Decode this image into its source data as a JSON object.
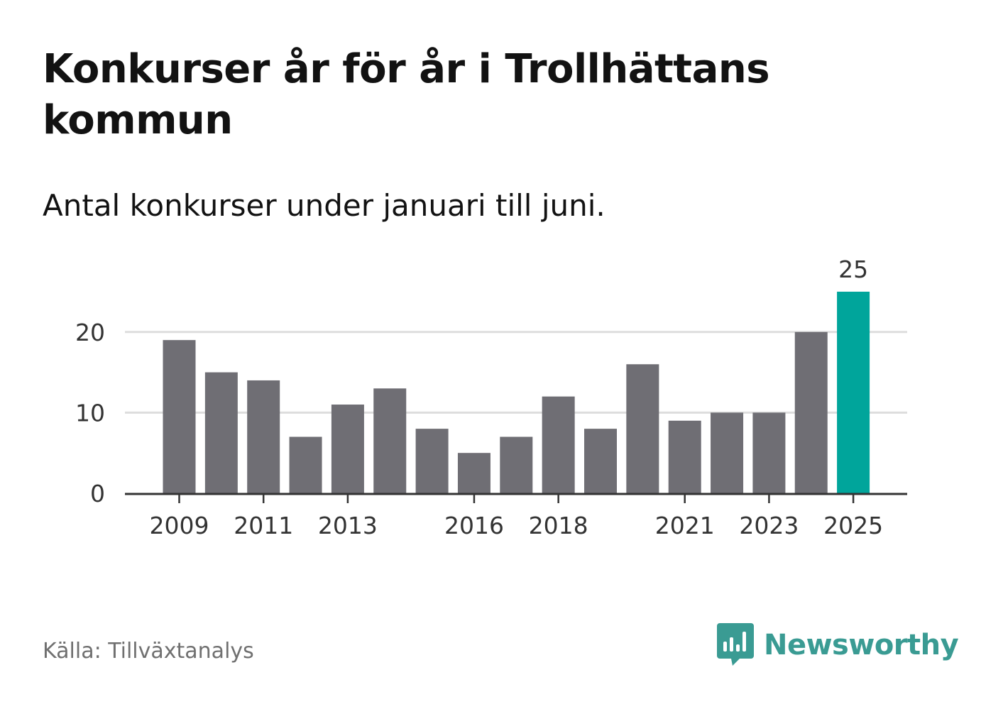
{
  "header": {
    "title": "Konkurser år för år i Trollhättans kommun",
    "subtitle": "Antal konkurser under januari till juni."
  },
  "footer": {
    "source": "Källa: Tillväxtanalys",
    "brand": "Newsworthy",
    "brand_icon": "newsworthy-logo-icon"
  },
  "colors": {
    "bar": "#6f6e74",
    "highlight": "#00a59b",
    "grid": "#dddddd",
    "axis": "#333333",
    "brand": "#3a9b93"
  },
  "chart_data": {
    "type": "bar",
    "categories": [
      "2009",
      "2010",
      "2011",
      "2012",
      "2013",
      "2014",
      "2015",
      "2016",
      "2017",
      "2018",
      "2019",
      "2020",
      "2021",
      "2022",
      "2023",
      "2024",
      "2025"
    ],
    "values": [
      19,
      15,
      14,
      7,
      11,
      13,
      8,
      5,
      7,
      12,
      8,
      16,
      9,
      10,
      10,
      20,
      25
    ],
    "x_tick_labels": [
      "2009",
      "2011",
      "2013",
      "2016",
      "2018",
      "2021",
      "2023",
      "2025"
    ],
    "y_ticks": [
      0,
      10,
      20
    ],
    "ylim": [
      0,
      25
    ],
    "grid": true,
    "highlight_category": "2025",
    "data_labels": [
      {
        "category": "2025",
        "text": "25"
      }
    ],
    "xlabel": "",
    "ylabel": ""
  }
}
